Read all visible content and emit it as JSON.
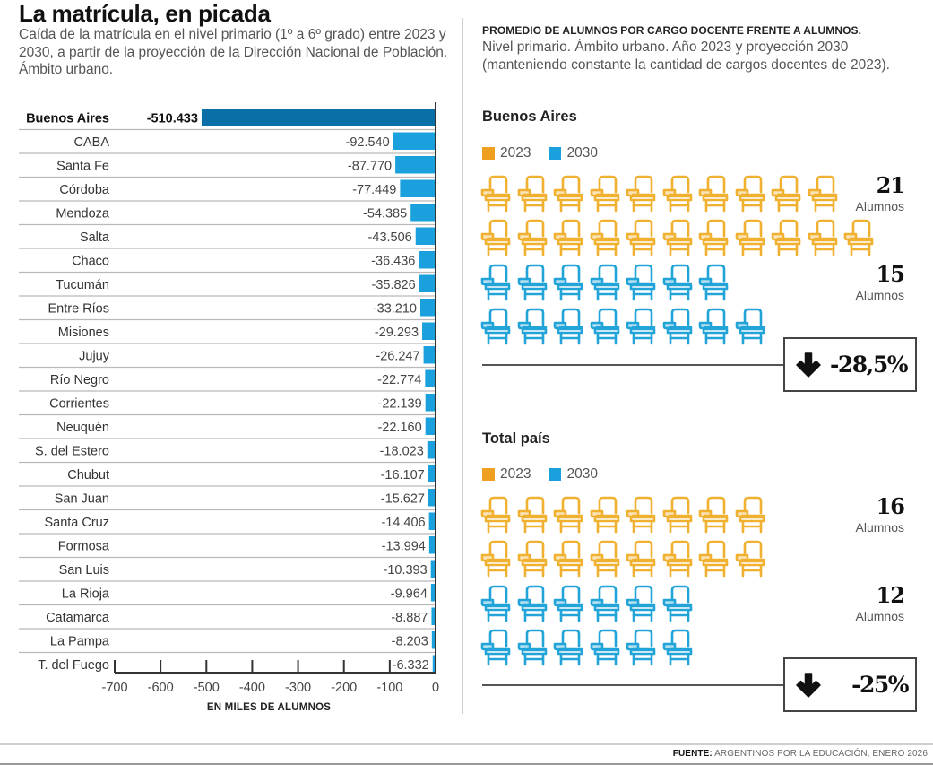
{
  "left": {
    "title": "La matrícula, en picada",
    "subtitle": "Caída de la matrícula en el nivel primario (1º a 6º grado) entre 2023 y 2030, a partir de la proyección de la Dirección Nacional de Población. Ámbito urbano."
  },
  "right": {
    "header": "PROMEDIO DE ALUMNOS POR CARGO DOCENTE FRENTE A ALUMNOS.",
    "subheader": "Nivel primario. Ámbito urbano. Año 2023 y proyección 2030 (manteniendo constante la cantidad de cargos docentes de 2023).",
    "legend": [
      {
        "label": "2023",
        "color": "#f0a020"
      },
      {
        "label": "2030",
        "color": "#1aa0dc"
      }
    ],
    "unit_label": "Alumnos",
    "sections": [
      {
        "title": "Buenos Aires",
        "value_2023": 21,
        "value_2030": 15,
        "value_2023_label": "21",
        "value_2030_label": "15",
        "change_label": "-28,5%",
        "change_icon": "arrow-down-icon"
      },
      {
        "title": "Total país",
        "value_2023": 16,
        "value_2030": 12,
        "value_2023_label": "16",
        "value_2030_label": "12",
        "change_label": "-25%",
        "change_icon": "arrow-down-icon"
      }
    ]
  },
  "footer": {
    "source_label": "FUENTE:",
    "source_text": " ARGENTINOS POR LA EDUCACIÓN, ENERO 2026"
  },
  "colors": {
    "highlight_bar": "#0a6fa6",
    "bar": "#1aa0dc",
    "desk_2023": "#f0b030",
    "desk_2030": "#22a4d8"
  },
  "chart_data": [
    {
      "type": "bar",
      "orientation": "horizontal",
      "title": "La matrícula, en picada",
      "xlabel": "EN MILES DE ALUMNOS",
      "ylabel": "",
      "xlim": [
        -700,
        0
      ],
      "xticks": [
        -700,
        -600,
        -500,
        -400,
        -300,
        -200,
        -100,
        0
      ],
      "xtick_labels": [
        "-700",
        "-600",
        "-500",
        "-400",
        "-300",
        "-200",
        "-100",
        "0"
      ],
      "grid": false,
      "categories": [
        "Buenos Aires",
        "CABA",
        "Santa Fe",
        "Córdoba",
        "Mendoza",
        "Salta",
        "Chaco",
        "Tucumán",
        "Entre Ríos",
        "Misiones",
        "Jujuy",
        "Río Negro",
        "Corrientes",
        "Neuquén",
        "S. del Estero",
        "Chubut",
        "San Juan",
        "Santa Cruz",
        "Formosa",
        "San Luis",
        "La Rioja",
        "Catamarca",
        "La Pampa",
        "T. del Fuego"
      ],
      "values": [
        -510433,
        -92540,
        -87770,
        -77449,
        -54385,
        -43506,
        -36436,
        -35826,
        -33210,
        -29293,
        -26247,
        -22774,
        -22139,
        -22160,
        -18023,
        -16107,
        -15627,
        -14406,
        -13994,
        -10393,
        -9964,
        -8887,
        -8203,
        -6332
      ],
      "value_labels": [
        "-510.433",
        "-92.540",
        "-87.770",
        "-77.449",
        "-54.385",
        "-43.506",
        "-36.436",
        "-35.826",
        "-33.210",
        "-29.293",
        "-26.247",
        "-22.774",
        "-22.139",
        "-22.160",
        "-18.023",
        "-16.107",
        "-15.627",
        "-14.406",
        "-13.994",
        "-10.393",
        "-9.964",
        "-8.887",
        "-8.203",
        "-6.332"
      ],
      "highlight": "Buenos Aires"
    },
    {
      "type": "pictogram",
      "title": "Buenos Aires",
      "series": [
        {
          "name": "2023",
          "value": 21,
          "color": "#f0b030"
        },
        {
          "name": "2030",
          "value": 15,
          "color": "#22a4d8"
        }
      ],
      "unit": "Alumnos",
      "change": "-28,5%"
    },
    {
      "type": "pictogram",
      "title": "Total país",
      "series": [
        {
          "name": "2023",
          "value": 16,
          "color": "#f0b030"
        },
        {
          "name": "2030",
          "value": 12,
          "color": "#22a4d8"
        }
      ],
      "unit": "Alumnos",
      "change": "-25%"
    }
  ]
}
